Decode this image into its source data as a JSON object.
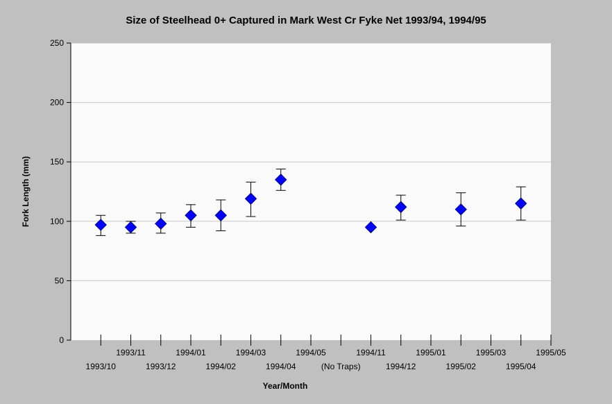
{
  "chart_data": {
    "type": "scatter",
    "title": "Size of Steelhead 0+ Captured in Mark West Cr Fyke Net 1993/94, 1994/95",
    "xlabel": "Year/Month",
    "ylabel": "Fork Length (mm)",
    "ylim": [
      0,
      250
    ],
    "yticks": [
      0,
      50,
      100,
      150,
      200,
      250
    ],
    "grid": true,
    "legend": "none",
    "marker_color": "#0000ff",
    "categories": [
      "1993/10",
      "1993/11",
      "1993/12",
      "1994/01",
      "1994/02",
      "1994/03",
      "1994/04",
      "1994/05",
      "(No Traps)",
      "1994/11",
      "1994/12",
      "1995/01",
      "1995/02",
      "1995/03",
      "1995/04",
      "1995/05"
    ],
    "series": [
      {
        "points": [
          {
            "x": "1993/10",
            "y": 97,
            "low": 88,
            "high": 105
          },
          {
            "x": "1993/11",
            "y": 95,
            "low": 90,
            "high": 100
          },
          {
            "x": "1993/12",
            "y": 98,
            "low": 90,
            "high": 107
          },
          {
            "x": "1994/01",
            "y": 105,
            "low": 95,
            "high": 114
          },
          {
            "x": "1994/02",
            "y": 105,
            "low": 92,
            "high": 118
          },
          {
            "x": "1994/03",
            "y": 119,
            "low": 104,
            "high": 133
          },
          {
            "x": "1994/04",
            "y": 135,
            "low": 126,
            "high": 144
          },
          {
            "x": "1994/11",
            "y": 95,
            "low": null,
            "high": null
          },
          {
            "x": "1994/12",
            "y": 112,
            "low": 101,
            "high": 122
          },
          {
            "x": "1995/02",
            "y": 110,
            "low": 96,
            "high": 124
          },
          {
            "x": "1995/04",
            "y": 115,
            "low": 101,
            "high": 129
          }
        ]
      }
    ]
  }
}
